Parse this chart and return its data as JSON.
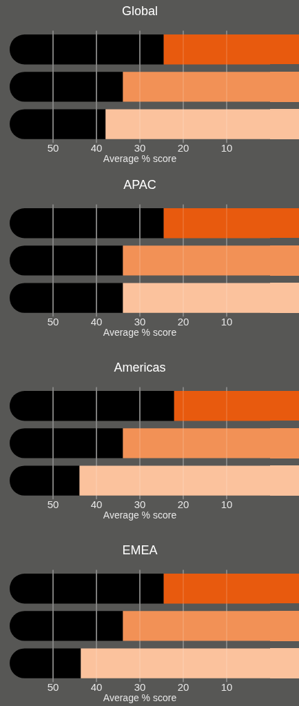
{
  "chart_data": [
    {
      "type": "bar",
      "orientation": "horizontal",
      "stacked": true,
      "title": "Global",
      "xlabel": "Average % score",
      "categories": [
        null,
        null,
        null
      ],
      "xlim": [
        60,
        0
      ],
      "xticks": [
        50,
        40,
        30,
        20,
        10
      ],
      "grid": "x",
      "legend": false,
      "series": [
        {
          "colors": [
            "#e85a0e",
            "#f29156",
            "#fbc29d"
          ],
          "values": [
            24.5,
            33.9,
            37.9
          ]
        },
        {
          "color": "#000000",
          "values": [
            35.5,
            26.1,
            22.1
          ]
        }
      ]
    },
    {
      "type": "bar",
      "orientation": "horizontal",
      "stacked": true,
      "title": "APAC",
      "xlabel": "Average % score",
      "categories": [
        null,
        null,
        null
      ],
      "xlim": [
        60,
        0
      ],
      "xticks": [
        50,
        40,
        30,
        20,
        10
      ],
      "grid": "x",
      "legend": false,
      "series": [
        {
          "colors": [
            "#e85a0e",
            "#f29156",
            "#fbc29d"
          ],
          "values": [
            24.5,
            33.9,
            33.9
          ]
        },
        {
          "color": "#000000",
          "values": [
            35.5,
            26.1,
            26.1
          ]
        }
      ]
    },
    {
      "type": "bar",
      "orientation": "horizontal",
      "stacked": true,
      "title": "Americas",
      "xlabel": "Average % score",
      "categories": [
        null,
        null,
        null
      ],
      "xlim": [
        60,
        0
      ],
      "xticks": [
        50,
        40,
        30,
        20,
        10
      ],
      "grid": "x",
      "legend": false,
      "series": [
        {
          "colors": [
            "#e85a0e",
            "#f29156",
            "#fbc29d"
          ],
          "values": [
            22.1,
            33.9,
            43.9
          ]
        },
        {
          "color": "#000000",
          "values": [
            37.9,
            26.1,
            16.1
          ]
        }
      ]
    },
    {
      "type": "bar",
      "orientation": "horizontal",
      "stacked": true,
      "title": "EMEA",
      "xlabel": "Average % score",
      "categories": [
        null,
        null,
        null
      ],
      "xlim": [
        60,
        0
      ],
      "xticks": [
        50,
        40,
        30,
        20,
        10
      ],
      "grid": "x",
      "legend": false,
      "series": [
        {
          "colors": [
            "#e85a0e",
            "#f29156",
            "#fbc29d"
          ],
          "values": [
            24.5,
            33.9,
            43.6
          ]
        },
        {
          "color": "#000000",
          "values": [
            35.5,
            26.1,
            16.4
          ]
        }
      ]
    }
  ]
}
